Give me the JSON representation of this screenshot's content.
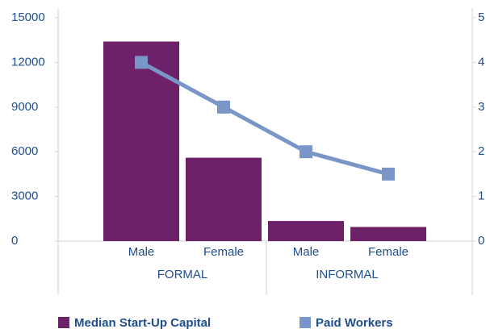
{
  "chart_data": {
    "type": "bar_line",
    "groups": [
      {
        "label": "FORMAL",
        "categories": [
          "Male",
          "Female"
        ]
      },
      {
        "label": "INFORMAL",
        "categories": [
          "Male",
          "Female"
        ]
      }
    ],
    "series": [
      {
        "name": "Median Start-Up Capital",
        "type": "bar",
        "color": "#6d2168",
        "values": [
          13400,
          5600,
          1350,
          950
        ]
      },
      {
        "name": "Paid Workers",
        "type": "line",
        "axis": "y2",
        "color": "#7a96c8",
        "values": [
          4,
          3,
          2,
          1.5
        ]
      }
    ],
    "ylim": [
      0,
      15000
    ],
    "yticks": [
      0,
      3000,
      6000,
      9000,
      12000,
      15000
    ],
    "y2lim": [
      0,
      5
    ],
    "y2ticks": [
      0,
      1,
      2,
      3,
      4,
      5
    ]
  }
}
